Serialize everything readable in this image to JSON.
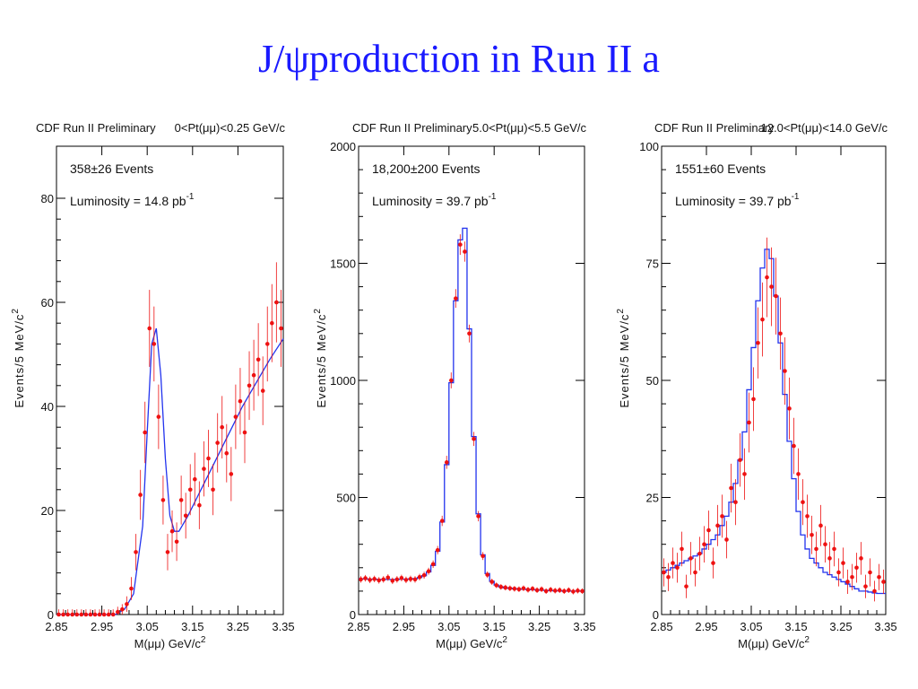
{
  "slide": {
    "title": "J/ψproduction in Run II a"
  },
  "colors": {
    "title": "#1a1aff",
    "data": "#ee1111",
    "fit": "#2233ee"
  },
  "chart_data": [
    {
      "type": "scatter",
      "header_left": "CDF Run II Preliminary",
      "header_right": "0<Pt(μμ)<0.25 GeV/c",
      "annotation_events": "358±26 Events",
      "annotation_lumi": "Luminosity = 14.8 pb",
      "lumi_superscript": "-1",
      "xlabel": "M(μμ) GeV/c",
      "xlabel_superscript": "2",
      "ylabel": "Events/5 MeV/c",
      "ylabel_superscript": "2",
      "xlim": [
        2.85,
        3.35
      ],
      "ylim": [
        0,
        90
      ],
      "x_ticks": [
        2.85,
        2.95,
        3.05,
        3.15,
        3.25,
        3.35
      ],
      "x_tick_labels": [
        "2.85",
        "2.95",
        "3.05",
        "3.15",
        "3.25",
        "3.35"
      ],
      "y_ticks": [
        0,
        20,
        40,
        60,
        80
      ],
      "y_tick_labels": [
        "0",
        "20",
        "40",
        "60",
        "80"
      ],
      "fit_style": "smooth",
      "series": [
        {
          "kind": "data",
          "x": [
            2.855,
            2.865,
            2.875,
            2.885,
            2.895,
            2.905,
            2.915,
            2.925,
            2.935,
            2.945,
            2.955,
            2.965,
            2.975,
            2.985,
            2.995,
            3.005,
            3.015,
            3.025,
            3.035,
            3.045,
            3.055,
            3.065,
            3.075,
            3.085,
            3.095,
            3.105,
            3.115,
            3.125,
            3.135,
            3.145,
            3.155,
            3.165,
            3.175,
            3.185,
            3.195,
            3.205,
            3.215,
            3.225,
            3.235,
            3.245,
            3.255,
            3.265,
            3.275,
            3.285,
            3.295,
            3.305,
            3.315,
            3.325,
            3.335,
            3.345
          ],
          "y": [
            0,
            0,
            0,
            0,
            0,
            0,
            0,
            0,
            0,
            0,
            0,
            0,
            0,
            0.5,
            1,
            2,
            5,
            12,
            23,
            35,
            55,
            52,
            38,
            22,
            12,
            16,
            14,
            22,
            19,
            24,
            26,
            21,
            28,
            30,
            24,
            33,
            36,
            31,
            27,
            38,
            41,
            35,
            44,
            46,
            49,
            43,
            52,
            56,
            60,
            55
          ],
          "err": [
            1,
            1,
            1,
            1,
            1,
            1,
            1,
            1,
            1,
            1,
            1,
            1,
            1,
            1,
            1,
            1.5,
            2.2,
            3.5,
            4.8,
            5.9,
            7.4,
            7.2,
            6.2,
            4.7,
            3.5,
            4,
            3.7,
            4.7,
            4.4,
            4.9,
            5.1,
            4.6,
            5.3,
            5.5,
            4.9,
            5.7,
            6,
            5.6,
            5.2,
            6.2,
            6.4,
            5.9,
            6.6,
            6.8,
            7,
            6.6,
            7.2,
            7.5,
            7.7,
            7.4
          ]
        },
        {
          "kind": "fit",
          "x": [
            2.85,
            2.9,
            2.95,
            2.98,
            3.0,
            3.02,
            3.04,
            3.05,
            3.06,
            3.07,
            3.08,
            3.09,
            3.1,
            3.11,
            3.12,
            3.14,
            3.16,
            3.18,
            3.2,
            3.22,
            3.24,
            3.26,
            3.28,
            3.3,
            3.32,
            3.35
          ],
          "y": [
            0,
            0,
            0,
            0,
            1,
            4,
            17,
            35,
            52,
            55,
            46,
            30,
            19,
            16,
            16,
            19,
            22.5,
            26,
            29.5,
            33,
            36.5,
            40,
            43,
            46,
            49,
            53
          ]
        }
      ]
    },
    {
      "type": "scatter",
      "header_left": "CDF Run II Preliminary",
      "header_right": "5.0<Pt(μμ)<5.5 GeV/c",
      "annotation_events": "18,200±200 Events",
      "annotation_lumi": "Luminosity = 39.7 pb",
      "lumi_superscript": "-1",
      "xlabel": "M(μμ) GeV/c",
      "xlabel_superscript": "2",
      "ylabel": "Events/5 MeV/c",
      "ylabel_superscript": "2",
      "xlim": [
        2.85,
        3.35
      ],
      "ylim": [
        0,
        2000
      ],
      "x_ticks": [
        2.85,
        2.95,
        3.05,
        3.15,
        3.25,
        3.35
      ],
      "x_tick_labels": [
        "2.85",
        "2.95",
        "3.05",
        "3.15",
        "3.25",
        "3.35"
      ],
      "y_ticks": [
        0,
        500,
        1000,
        1500,
        2000
      ],
      "y_tick_labels": [
        "0",
        "500",
        "1000",
        "1500",
        "2000"
      ],
      "fit_style": "step",
      "series": [
        {
          "kind": "data",
          "x": [
            2.855,
            2.865,
            2.875,
            2.885,
            2.895,
            2.905,
            2.915,
            2.925,
            2.935,
            2.945,
            2.955,
            2.965,
            2.975,
            2.985,
            2.995,
            3.005,
            3.015,
            3.025,
            3.035,
            3.045,
            3.055,
            3.065,
            3.075,
            3.085,
            3.095,
            3.105,
            3.115,
            3.125,
            3.135,
            3.145,
            3.155,
            3.165,
            3.175,
            3.185,
            3.195,
            3.205,
            3.215,
            3.225,
            3.235,
            3.245,
            3.255,
            3.265,
            3.275,
            3.285,
            3.295,
            3.305,
            3.315,
            3.325,
            3.335,
            3.345
          ],
          "y": [
            150,
            155,
            148,
            152,
            146,
            150,
            158,
            144,
            150,
            156,
            148,
            152,
            150,
            160,
            168,
            185,
            215,
            275,
            400,
            650,
            1000,
            1350,
            1580,
            1550,
            1200,
            750,
            420,
            250,
            170,
            140,
            125,
            118,
            115,
            112,
            110,
            108,
            112,
            106,
            110,
            104,
            108,
            100,
            106,
            102,
            104,
            100,
            104,
            98,
            102,
            100
          ],
          "err": [
            14,
            14,
            14,
            14,
            14,
            14,
            14,
            14,
            14,
            14,
            14,
            14,
            14,
            14,
            15,
            15,
            16,
            18,
            22,
            28,
            34,
            40,
            44,
            43,
            38,
            30,
            22,
            17,
            14,
            13,
            12,
            12,
            12,
            12,
            12,
            12,
            12,
            12,
            12,
            12,
            12,
            12,
            12,
            12,
            12,
            12,
            12,
            12,
            12,
            12
          ]
        },
        {
          "kind": "fit",
          "x": [
            2.85,
            2.86,
            2.87,
            2.88,
            2.89,
            2.9,
            2.91,
            2.92,
            2.93,
            2.94,
            2.95,
            2.96,
            2.97,
            2.98,
            2.99,
            3.0,
            3.01,
            3.02,
            3.03,
            3.04,
            3.05,
            3.06,
            3.07,
            3.08,
            3.09,
            3.1,
            3.11,
            3.12,
            3.13,
            3.14,
            3.15,
            3.16,
            3.17,
            3.18,
            3.19,
            3.2,
            3.21,
            3.22,
            3.23,
            3.24,
            3.25,
            3.26,
            3.27,
            3.28,
            3.29,
            3.3,
            3.31,
            3.32,
            3.33,
            3.34,
            3.35
          ],
          "y": [
            152,
            152,
            151,
            151,
            150,
            150,
            150,
            150,
            150,
            151,
            151,
            152,
            153,
            158,
            166,
            182,
            210,
            270,
            395,
            640,
            990,
            1340,
            1600,
            1650,
            1220,
            760,
            430,
            255,
            175,
            142,
            126,
            118,
            114,
            112,
            110,
            109,
            108,
            107,
            106,
            105,
            104,
            103,
            102,
            101,
            101,
            100,
            100,
            100,
            100,
            100,
            100
          ]
        }
      ]
    },
    {
      "type": "scatter",
      "header_left": "CDF Run II Preliminary",
      "header_right": "12.0<Pt(μμ)<14.0 GeV/c",
      "annotation_events": "1551±60 Events",
      "annotation_lumi": "Luminosity = 39.7 pb",
      "lumi_superscript": "-1",
      "xlabel": "M(μμ) GeV/c",
      "xlabel_superscript": "2",
      "ylabel": "Events/5 MeV/c",
      "ylabel_superscript": "2",
      "xlim": [
        2.85,
        3.35
      ],
      "ylim": [
        0,
        100
      ],
      "x_ticks": [
        2.85,
        2.95,
        3.05,
        3.15,
        3.25,
        3.35
      ],
      "x_tick_labels": [
        "2.85",
        "2.95",
        "3.05",
        "3.15",
        "3.25",
        "3.35"
      ],
      "y_ticks": [
        0,
        25,
        50,
        75,
        100
      ],
      "y_tick_labels": [
        "0",
        "25",
        "50",
        "75",
        "100"
      ],
      "fit_style": "step",
      "series": [
        {
          "kind": "data",
          "x": [
            2.855,
            2.865,
            2.875,
            2.885,
            2.895,
            2.905,
            2.915,
            2.925,
            2.935,
            2.945,
            2.955,
            2.965,
            2.975,
            2.985,
            2.995,
            3.005,
            3.015,
            3.025,
            3.035,
            3.045,
            3.055,
            3.065,
            3.075,
            3.085,
            3.095,
            3.105,
            3.115,
            3.125,
            3.135,
            3.145,
            3.155,
            3.165,
            3.175,
            3.185,
            3.195,
            3.205,
            3.215,
            3.225,
            3.235,
            3.245,
            3.255,
            3.265,
            3.275,
            3.285,
            3.295,
            3.305,
            3.315,
            3.325,
            3.335,
            3.345
          ],
          "y": [
            9,
            8,
            11,
            10,
            14,
            6,
            12,
            9,
            13,
            15,
            18,
            11,
            19,
            21,
            16,
            27,
            24,
            33,
            30,
            41,
            46,
            58,
            63,
            72,
            70,
            68,
            60,
            52,
            44,
            36,
            30,
            24,
            21,
            17,
            14,
            19,
            15,
            12,
            14,
            9,
            11,
            7,
            8,
            10,
            12,
            6,
            9,
            5,
            8,
            7
          ],
          "err": [
            3,
            3,
            3.3,
            3.2,
            3.7,
            2.5,
            3.5,
            3,
            3.6,
            3.9,
            4.2,
            3.3,
            4.4,
            4.6,
            4,
            5.2,
            4.9,
            5.7,
            5.5,
            6.4,
            6.8,
            7.6,
            7.9,
            8.5,
            8.4,
            8.2,
            7.7,
            7.2,
            6.6,
            6,
            5.5,
            4.9,
            4.6,
            4.1,
            3.7,
            4.4,
            3.9,
            3.5,
            3.7,
            3,
            3.3,
            2.6,
            2.8,
            3.2,
            3.5,
            2.5,
            3,
            2.2,
            2.8,
            2.6
          ]
        },
        {
          "kind": "fit",
          "x": [
            2.85,
            2.86,
            2.87,
            2.88,
            2.89,
            2.9,
            2.91,
            2.92,
            2.93,
            2.94,
            2.95,
            2.96,
            2.97,
            2.98,
            2.99,
            3.0,
            3.01,
            3.02,
            3.03,
            3.04,
            3.05,
            3.06,
            3.07,
            3.08,
            3.09,
            3.1,
            3.11,
            3.12,
            3.13,
            3.14,
            3.15,
            3.16,
            3.17,
            3.18,
            3.19,
            3.2,
            3.21,
            3.22,
            3.23,
            3.24,
            3.25,
            3.26,
            3.27,
            3.28,
            3.29,
            3.3,
            3.31,
            3.32,
            3.33,
            3.34,
            3.35
          ],
          "y": [
            9,
            9.5,
            10,
            10.5,
            11,
            11.5,
            12,
            12.5,
            13,
            14,
            15,
            16,
            17,
            19,
            21,
            24,
            28,
            33,
            39,
            48,
            57,
            67,
            74,
            78,
            76,
            68,
            58,
            47,
            37,
            29,
            22,
            17,
            14,
            12,
            11,
            10,
            9,
            8.5,
            8,
            7.5,
            7,
            6.5,
            6,
            5.5,
            5,
            5,
            4.8,
            4.6,
            4.5,
            4.5,
            4.5
          ]
        }
      ]
    }
  ]
}
